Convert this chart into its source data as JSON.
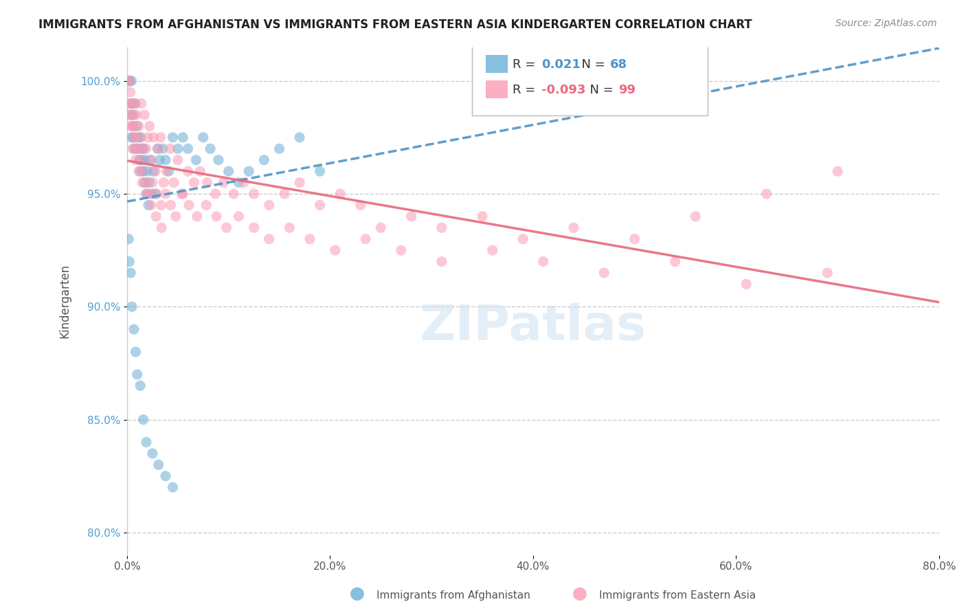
{
  "title": "IMMIGRANTS FROM AFGHANISTAN VS IMMIGRANTS FROM EASTERN ASIA KINDERGARTEN CORRELATION CHART",
  "source": "Source: ZipAtlas.com",
  "xlabel": "",
  "ylabel": "Kindergarten",
  "xmin": 0.0,
  "xmax": 80.0,
  "ymin": 79.0,
  "ymax": 101.5,
  "yticks": [
    80.0,
    85.0,
    90.0,
    95.0,
    100.0
  ],
  "ytick_labels": [
    "80.0%",
    "85.0%",
    "90.0%",
    "95.0%",
    "100.0%"
  ],
  "xticks": [
    0.0,
    20.0,
    40.0,
    60.0,
    80.0
  ],
  "xtick_labels": [
    "0.0%",
    "20.0%",
    "40.0%",
    "60.0%",
    "80.0%"
  ],
  "afghanistan_color": "#6baed6",
  "eastern_asia_color": "#fc9bb3",
  "afghanistan_R": 0.021,
  "afghanistan_N": 68,
  "eastern_asia_R": -0.093,
  "eastern_asia_N": 99,
  "trend_blue_color": "#4d94c8",
  "trend_pink_color": "#e8687e",
  "watermark": "ZIPatlas",
  "background_color": "#ffffff",
  "grid_color": "#cccccc",
  "afghanistan_x": [
    0.13,
    0.18,
    0.26,
    0.31,
    0.38,
    0.42,
    0.45,
    0.52,
    0.58,
    0.61,
    0.65,
    0.7,
    0.8,
    0.92,
    0.98,
    1.05,
    1.12,
    1.2,
    1.28,
    1.35,
    1.42,
    1.5,
    1.58,
    1.65,
    1.72,
    1.8,
    1.9,
    2.0,
    2.1,
    2.2,
    2.3,
    2.45,
    2.6,
    2.8,
    3.0,
    3.2,
    3.5,
    3.8,
    4.1,
    4.5,
    5.0,
    5.5,
    6.0,
    6.8,
    7.5,
    8.2,
    9.0,
    10.0,
    11.0,
    12.0,
    13.5,
    15.0,
    17.0,
    19.0,
    0.15,
    0.22,
    0.35,
    0.48,
    0.68,
    0.85,
    1.0,
    1.3,
    1.6,
    1.9,
    2.5,
    3.1,
    3.8,
    4.5
  ],
  "afghanistan_y": [
    100.0,
    100.0,
    100.0,
    98.5,
    99.0,
    97.5,
    100.0,
    99.0,
    98.0,
    97.5,
    98.5,
    97.0,
    99.0,
    97.0,
    98.0,
    97.5,
    97.0,
    96.5,
    96.0,
    97.5,
    96.5,
    97.0,
    96.0,
    97.0,
    95.5,
    96.5,
    95.0,
    96.0,
    94.5,
    95.5,
    96.5,
    95.0,
    96.0,
    95.0,
    97.0,
    96.5,
    97.0,
    96.5,
    96.0,
    97.5,
    97.0,
    97.5,
    97.0,
    96.5,
    97.5,
    97.0,
    96.5,
    96.0,
    95.5,
    96.0,
    96.5,
    97.0,
    97.5,
    96.0,
    93.0,
    92.0,
    91.5,
    90.0,
    89.0,
    88.0,
    87.0,
    86.5,
    85.0,
    84.0,
    83.5,
    83.0,
    82.5,
    82.0
  ],
  "eastern_asia_x": [
    0.12,
    0.22,
    0.32,
    0.42,
    0.52,
    0.62,
    0.72,
    0.82,
    0.92,
    1.02,
    1.15,
    1.28,
    1.42,
    1.58,
    1.72,
    1.88,
    2.05,
    2.22,
    2.4,
    2.6,
    2.8,
    3.05,
    3.3,
    3.6,
    3.9,
    4.25,
    4.6,
    5.0,
    5.5,
    6.0,
    6.6,
    7.2,
    7.9,
    8.7,
    9.5,
    10.5,
    11.5,
    12.5,
    14.0,
    15.5,
    17.0,
    19.0,
    21.0,
    23.0,
    25.0,
    28.0,
    31.0,
    35.0,
    39.0,
    44.0,
    50.0,
    56.0,
    63.0,
    70.0,
    0.18,
    0.38,
    0.58,
    0.78,
    1.0,
    1.25,
    1.55,
    1.85,
    2.15,
    2.5,
    2.9,
    3.35,
    3.8,
    4.3,
    4.8,
    5.4,
    6.1,
    6.9,
    7.8,
    8.8,
    9.8,
    11.0,
    12.5,
    14.0,
    16.0,
    18.0,
    20.5,
    23.5,
    27.0,
    31.0,
    36.0,
    41.0,
    47.0,
    54.0,
    61.0,
    69.0,
    0.28,
    0.55,
    0.85,
    1.15,
    1.5,
    1.9,
    2.35,
    2.85,
    3.4
  ],
  "eastern_asia_y": [
    100.0,
    100.0,
    99.5,
    99.0,
    98.5,
    98.0,
    97.5,
    99.0,
    98.5,
    97.0,
    98.0,
    97.5,
    99.0,
    97.0,
    98.5,
    97.0,
    97.5,
    98.0,
    96.5,
    97.5,
    96.0,
    97.0,
    97.5,
    95.5,
    96.0,
    97.0,
    95.5,
    96.5,
    95.0,
    96.0,
    95.5,
    96.0,
    95.5,
    95.0,
    95.5,
    95.0,
    95.5,
    95.0,
    94.5,
    95.0,
    95.5,
    94.5,
    95.0,
    94.5,
    93.5,
    94.0,
    93.5,
    94.0,
    93.0,
    93.5,
    93.0,
    94.0,
    95.0,
    96.0,
    99.0,
    98.5,
    98.0,
    97.5,
    97.0,
    96.5,
    96.0,
    95.5,
    95.0,
    95.5,
    95.0,
    94.5,
    95.0,
    94.5,
    94.0,
    95.0,
    94.5,
    94.0,
    94.5,
    94.0,
    93.5,
    94.0,
    93.5,
    93.0,
    93.5,
    93.0,
    92.5,
    93.0,
    92.5,
    92.0,
    92.5,
    92.0,
    91.5,
    92.0,
    91.0,
    91.5,
    98.0,
    97.0,
    96.5,
    96.0,
    95.5,
    95.0,
    94.5,
    94.0,
    93.5
  ]
}
